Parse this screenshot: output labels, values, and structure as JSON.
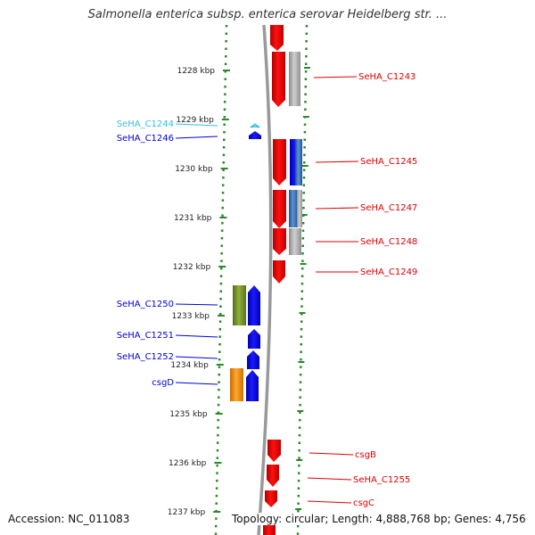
{
  "title": "Salmonella enterica subsp. enterica serovar Heidelberg str. ...",
  "accession": "Accession: NC_011083",
  "topology": "Topology: circular; Length: 4,888,768 bp; Genes: 4,756",
  "colors": {
    "forward": "#e00000",
    "reverse": "#0000e0",
    "grey": "#aaaaaa",
    "steel": "#3a6fb0",
    "olive": "#6b8e23",
    "orange": "#f28c00",
    "cyan": "#33c0e0",
    "ruler": "#2a8a2a",
    "backbone": "#888888"
  },
  "ticks": [
    "1228 kbp",
    "1229 kbp",
    "1230 kbp",
    "1231 kbp",
    "1232 kbp",
    "1233 kbp",
    "1234 kbp",
    "1235 kbp",
    "1236 kbp",
    "1237 kbp"
  ],
  "genes_left": [
    {
      "label": "SeHA_C1244",
      "color": "cyan"
    },
    {
      "label": "SeHA_C1246",
      "color": "reverse"
    },
    {
      "label": "SeHA_C1250",
      "color": "reverse"
    },
    {
      "label": "SeHA_C1251",
      "color": "reverse"
    },
    {
      "label": "SeHA_C1252",
      "color": "reverse"
    },
    {
      "label": "csgD",
      "color": "reverse"
    }
  ],
  "genes_right": [
    {
      "label": "SeHA_C1243"
    },
    {
      "label": "SeHA_C1245"
    },
    {
      "label": "SeHA_C1247"
    },
    {
      "label": "SeHA_C1248"
    },
    {
      "label": "SeHA_C1249"
    },
    {
      "label": "csgB"
    },
    {
      "label": "SeHA_C1255"
    },
    {
      "label": "csgC"
    }
  ]
}
